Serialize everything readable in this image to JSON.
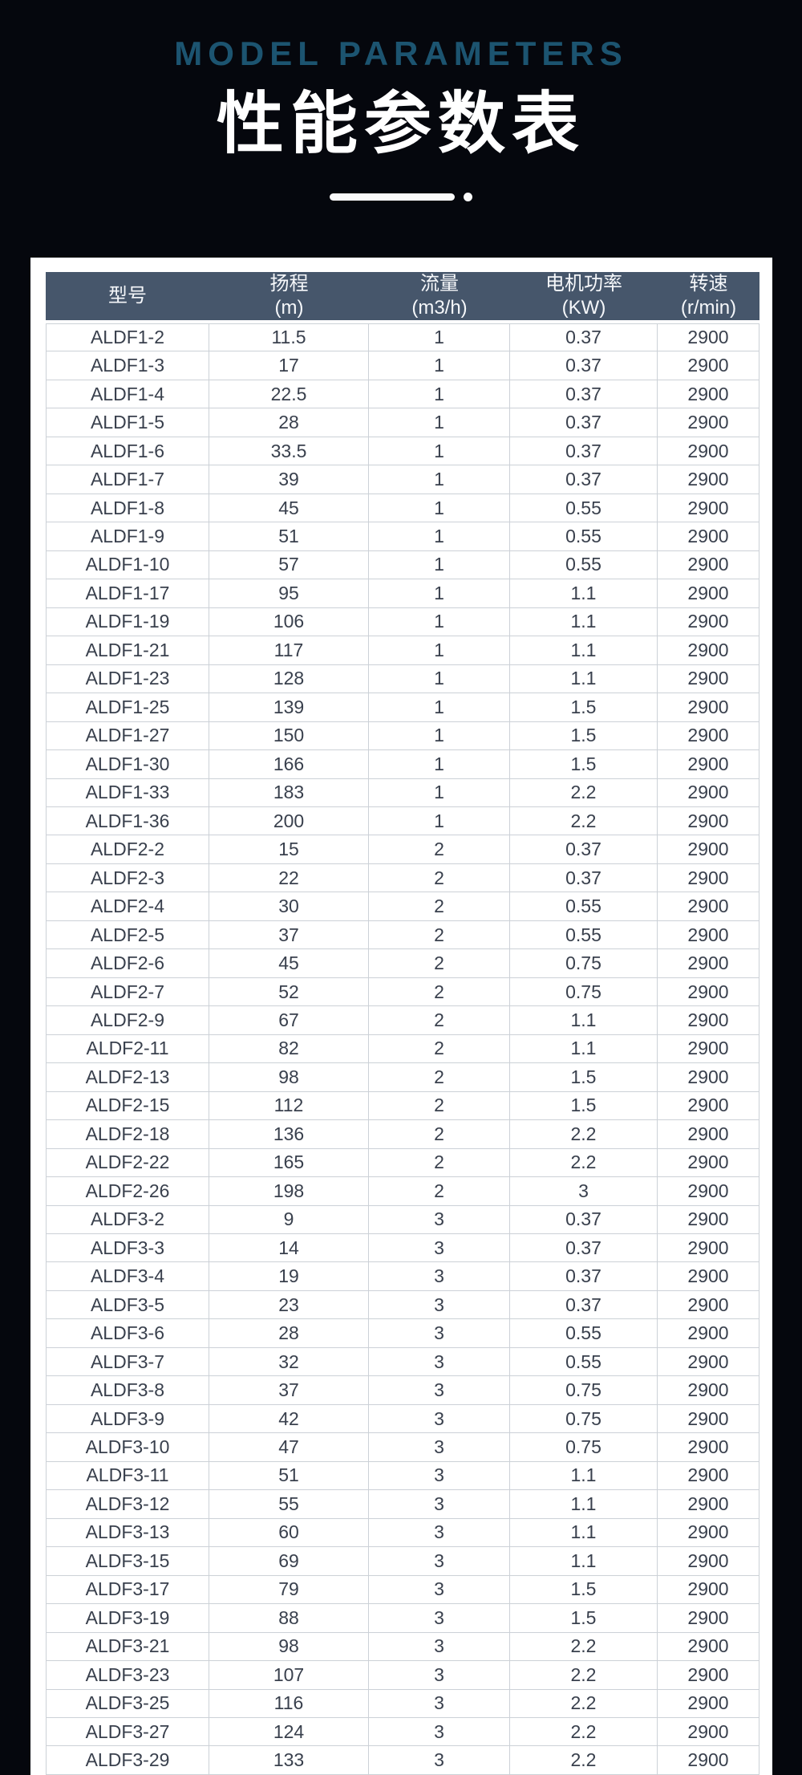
{
  "header": {
    "title_en": "MODEL PARAMETERS",
    "title_zh": "性能参数表"
  },
  "table": {
    "columns": [
      {
        "label": "型号",
        "unit": ""
      },
      {
        "label": "扬程",
        "unit": "(m)"
      },
      {
        "label": "流量",
        "unit": "(m3/h)"
      },
      {
        "label": "电机功率",
        "unit": "(KW)"
      },
      {
        "label": "转速",
        "unit": "(r/min)"
      }
    ],
    "rows": [
      [
        "ALDF1-2",
        "11.5",
        "1",
        "0.37",
        "2900"
      ],
      [
        "ALDF1-3",
        "17",
        "1",
        "0.37",
        "2900"
      ],
      [
        "ALDF1-4",
        "22.5",
        "1",
        "0.37",
        "2900"
      ],
      [
        "ALDF1-5",
        "28",
        "1",
        "0.37",
        "2900"
      ],
      [
        "ALDF1-6",
        "33.5",
        "1",
        "0.37",
        "2900"
      ],
      [
        "ALDF1-7",
        "39",
        "1",
        "0.37",
        "2900"
      ],
      [
        "ALDF1-8",
        "45",
        "1",
        "0.55",
        "2900"
      ],
      [
        "ALDF1-9",
        "51",
        "1",
        "0.55",
        "2900"
      ],
      [
        "ALDF1-10",
        "57",
        "1",
        "0.55",
        "2900"
      ],
      [
        "ALDF1-17",
        "95",
        "1",
        "1.1",
        "2900"
      ],
      [
        "ALDF1-19",
        "106",
        "1",
        "1.1",
        "2900"
      ],
      [
        "ALDF1-21",
        "117",
        "1",
        "1.1",
        "2900"
      ],
      [
        "ALDF1-23",
        "128",
        "1",
        "1.1",
        "2900"
      ],
      [
        "ALDF1-25",
        "139",
        "1",
        "1.5",
        "2900"
      ],
      [
        "ALDF1-27",
        "150",
        "1",
        "1.5",
        "2900"
      ],
      [
        "ALDF1-30",
        "166",
        "1",
        "1.5",
        "2900"
      ],
      [
        "ALDF1-33",
        "183",
        "1",
        "2.2",
        "2900"
      ],
      [
        "ALDF1-36",
        "200",
        "1",
        "2.2",
        "2900"
      ],
      [
        "ALDF2-2",
        "15",
        "2",
        "0.37",
        "2900"
      ],
      [
        "ALDF2-3",
        "22",
        "2",
        "0.37",
        "2900"
      ],
      [
        "ALDF2-4",
        "30",
        "2",
        "0.55",
        "2900"
      ],
      [
        "ALDF2-5",
        "37",
        "2",
        "0.55",
        "2900"
      ],
      [
        "ALDF2-6",
        "45",
        "2",
        "0.75",
        "2900"
      ],
      [
        "ALDF2-7",
        "52",
        "2",
        "0.75",
        "2900"
      ],
      [
        "ALDF2-9",
        "67",
        "2",
        "1.1",
        "2900"
      ],
      [
        "ALDF2-11",
        "82",
        "2",
        "1.1",
        "2900"
      ],
      [
        "ALDF2-13",
        "98",
        "2",
        "1.5",
        "2900"
      ],
      [
        "ALDF2-15",
        "112",
        "2",
        "1.5",
        "2900"
      ],
      [
        "ALDF2-18",
        "136",
        "2",
        "2.2",
        "2900"
      ],
      [
        "ALDF2-22",
        "165",
        "2",
        "2.2",
        "2900"
      ],
      [
        "ALDF2-26",
        "198",
        "2",
        "3",
        "2900"
      ],
      [
        "ALDF3-2",
        "9",
        "3",
        "0.37",
        "2900"
      ],
      [
        "ALDF3-3",
        "14",
        "3",
        "0.37",
        "2900"
      ],
      [
        "ALDF3-4",
        "19",
        "3",
        "0.37",
        "2900"
      ],
      [
        "ALDF3-5",
        "23",
        "3",
        "0.37",
        "2900"
      ],
      [
        "ALDF3-6",
        "28",
        "3",
        "0.55",
        "2900"
      ],
      [
        "ALDF3-7",
        "32",
        "3",
        "0.55",
        "2900"
      ],
      [
        "ALDF3-8",
        "37",
        "3",
        "0.75",
        "2900"
      ],
      [
        "ALDF3-9",
        "42",
        "3",
        "0.75",
        "2900"
      ],
      [
        "ALDF3-10",
        "47",
        "3",
        "0.75",
        "2900"
      ],
      [
        "ALDF3-11",
        "51",
        "3",
        "1.1",
        "2900"
      ],
      [
        "ALDF3-12",
        "55",
        "3",
        "1.1",
        "2900"
      ],
      [
        "ALDF3-13",
        "60",
        "3",
        "1.1",
        "2900"
      ],
      [
        "ALDF3-15",
        "69",
        "3",
        "1.1",
        "2900"
      ],
      [
        "ALDF3-17",
        "79",
        "3",
        "1.5",
        "2900"
      ],
      [
        "ALDF3-19",
        "88",
        "3",
        "1.5",
        "2900"
      ],
      [
        "ALDF3-21",
        "98",
        "3",
        "2.2",
        "2900"
      ],
      [
        "ALDF3-23",
        "107",
        "3",
        "2.2",
        "2900"
      ],
      [
        "ALDF3-25",
        "116",
        "3",
        "2.2",
        "2900"
      ],
      [
        "ALDF3-27",
        "124",
        "3",
        "2.2",
        "2900"
      ],
      [
        "ALDF3-29",
        "133",
        "3",
        "2.2",
        "2900"
      ]
    ]
  },
  "colors": {
    "page_bg": "#05070d",
    "title_accent": "#1c5470",
    "title_text": "#ffffff",
    "panel_bg": "#ffffff",
    "table_header_bg": "#46566b",
    "table_header_text": "#f5f7fa",
    "row_text": "#39404d",
    "row_border": "#ccd1d7",
    "row_bg": "#ffffff"
  }
}
